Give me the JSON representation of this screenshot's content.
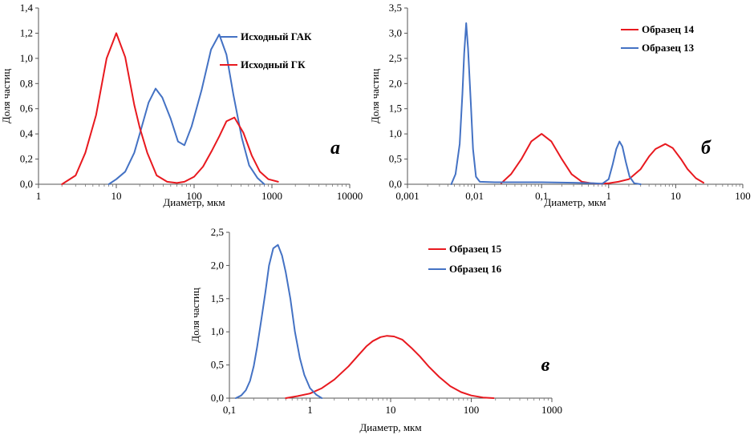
{
  "chart_data": [
    {
      "type": "line",
      "panel_label": "а",
      "xscale": "log",
      "xlim": [
        1,
        10000
      ],
      "ylim": [
        0,
        1.4
      ],
      "xticks": [
        "1",
        "10",
        "100",
        "1000",
        "10000"
      ],
      "yticks": [
        "0,0",
        "0,2",
        "0,4",
        "0,6",
        "0,8",
        "1,0",
        "1,2",
        "1,4"
      ],
      "xlabel": "Диаметр, мкм",
      "ylabel": "Доля частиц",
      "legend_position": "top-right",
      "series": [
        {
          "name": "Исходный ГАК",
          "color": "#4472C4",
          "points": [
            [
              8,
              0.0
            ],
            [
              10,
              0.04
            ],
            [
              13,
              0.1
            ],
            [
              17,
              0.25
            ],
            [
              20,
              0.4
            ],
            [
              26,
              0.65
            ],
            [
              32,
              0.76
            ],
            [
              39,
              0.69
            ],
            [
              50,
              0.52
            ],
            [
              62,
              0.34
            ],
            [
              75,
              0.31
            ],
            [
              93,
              0.46
            ],
            [
              125,
              0.75
            ],
            [
              165,
              1.07
            ],
            [
              210,
              1.19
            ],
            [
              260,
              1.03
            ],
            [
              320,
              0.71
            ],
            [
              410,
              0.37
            ],
            [
              510,
              0.15
            ],
            [
              650,
              0.05
            ],
            [
              800,
              0.0
            ]
          ]
        },
        {
          "name": "Исходный ГК",
          "color": "#E8191F",
          "points": [
            [
              2,
              0.0
            ],
            [
              3,
              0.07
            ],
            [
              4,
              0.25
            ],
            [
              5.5,
              0.55
            ],
            [
              7.5,
              1.0
            ],
            [
              10,
              1.2
            ],
            [
              13,
              1.01
            ],
            [
              17,
              0.63
            ],
            [
              20,
              0.45
            ],
            [
              25,
              0.25
            ],
            [
              33,
              0.07
            ],
            [
              45,
              0.02
            ],
            [
              60,
              0.01
            ],
            [
              75,
              0.02
            ],
            [
              100,
              0.06
            ],
            [
              130,
              0.14
            ],
            [
              170,
              0.27
            ],
            [
              210,
              0.38
            ],
            [
              260,
              0.5
            ],
            [
              330,
              0.53
            ],
            [
              430,
              0.41
            ],
            [
              550,
              0.23
            ],
            [
              700,
              0.1
            ],
            [
              900,
              0.04
            ],
            [
              1200,
              0.02
            ]
          ]
        }
      ]
    },
    {
      "type": "line",
      "panel_label": "б",
      "xscale": "log",
      "xlim": [
        0.001,
        100
      ],
      "ylim": [
        0,
        3.5
      ],
      "xticks": [
        "0,001",
        "0,01",
        "0,1",
        "1",
        "10",
        "100"
      ],
      "yticks": [
        "0,0",
        "0,5",
        "1,0",
        "1,5",
        "2,0",
        "2,5",
        "3,0",
        "3,5"
      ],
      "xlabel": "Диаметр, мкм",
      "ylabel": "Доля частиц",
      "legend_position": "top-right",
      "series": [
        {
          "name": "Образец 14",
          "color": "#E8191F",
          "points": [
            [
              0.025,
              0.02
            ],
            [
              0.035,
              0.2
            ],
            [
              0.05,
              0.5
            ],
            [
              0.07,
              0.85
            ],
            [
              0.1,
              1.0
            ],
            [
              0.14,
              0.85
            ],
            [
              0.2,
              0.5
            ],
            [
              0.28,
              0.2
            ],
            [
              0.4,
              0.05
            ],
            [
              0.55,
              0.02
            ],
            [
              0.75,
              0.01
            ],
            [
              1,
              0.02
            ],
            [
              1.4,
              0.05
            ],
            [
              2,
              0.1
            ],
            [
              3,
              0.3
            ],
            [
              4,
              0.55
            ],
            [
              5,
              0.7
            ],
            [
              7,
              0.8
            ],
            [
              9,
              0.72
            ],
            [
              12,
              0.5
            ],
            [
              15,
              0.3
            ],
            [
              20,
              0.12
            ],
            [
              26,
              0.03
            ]
          ]
        },
        {
          "name": "Образец 13",
          "color": "#4472C4",
          "points": [
            [
              0.0045,
              0.0
            ],
            [
              0.0052,
              0.2
            ],
            [
              0.006,
              0.8
            ],
            [
              0.0066,
              1.8
            ],
            [
              0.007,
              2.6
            ],
            [
              0.0075,
              3.2
            ],
            [
              0.008,
              2.7
            ],
            [
              0.0088,
              1.6
            ],
            [
              0.0095,
              0.7
            ],
            [
              0.0105,
              0.15
            ],
            [
              0.012,
              0.05
            ],
            [
              0.02,
              0.04
            ],
            [
              0.05,
              0.04
            ],
            [
              0.1,
              0.04
            ],
            [
              0.3,
              0.03
            ],
            [
              0.6,
              0.02
            ],
            [
              0.8,
              0.01
            ],
            [
              1,
              0.1
            ],
            [
              1.15,
              0.4
            ],
            [
              1.3,
              0.7
            ],
            [
              1.45,
              0.85
            ],
            [
              1.6,
              0.75
            ],
            [
              1.8,
              0.45
            ],
            [
              2.05,
              0.15
            ],
            [
              2.4,
              0.02
            ],
            [
              3,
              0.0
            ]
          ]
        }
      ]
    },
    {
      "type": "line",
      "panel_label": "в",
      "xscale": "log",
      "xlim": [
        0.1,
        1000
      ],
      "ylim": [
        0,
        2.5
      ],
      "xticks": [
        "0,1",
        "1",
        "10",
        "100",
        "1000"
      ],
      "yticks": [
        "0,0",
        "0,5",
        "1,0",
        "1,5",
        "2,0",
        "2,5"
      ],
      "xlabel": "Диаметр, мкм",
      "ylabel": "Доля частиц",
      "legend_position": "top-right",
      "series": [
        {
          "name": "Образец 15",
          "color": "#E8191F",
          "points": [
            [
              0.5,
              0.0
            ],
            [
              0.7,
              0.03
            ],
            [
              1,
              0.07
            ],
            [
              1.4,
              0.15
            ],
            [
              2,
              0.28
            ],
            [
              3,
              0.48
            ],
            [
              4,
              0.65
            ],
            [
              5,
              0.78
            ],
            [
              6,
              0.86
            ],
            [
              7.5,
              0.92
            ],
            [
              9,
              0.94
            ],
            [
              11,
              0.93
            ],
            [
              14,
              0.88
            ],
            [
              18,
              0.76
            ],
            [
              23,
              0.63
            ],
            [
              30,
              0.47
            ],
            [
              40,
              0.32
            ],
            [
              55,
              0.18
            ],
            [
              75,
              0.09
            ],
            [
              100,
              0.04
            ],
            [
              140,
              0.01
            ],
            [
              190,
              0.0
            ]
          ]
        },
        {
          "name": "Образец 16",
          "color": "#4472C4",
          "points": [
            [
              0.12,
              0.0
            ],
            [
              0.14,
              0.04
            ],
            [
              0.16,
              0.12
            ],
            [
              0.18,
              0.26
            ],
            [
              0.2,
              0.48
            ],
            [
              0.22,
              0.76
            ],
            [
              0.25,
              1.2
            ],
            [
              0.28,
              1.6
            ],
            [
              0.31,
              2.0
            ],
            [
              0.35,
              2.26
            ],
            [
              0.4,
              2.31
            ],
            [
              0.45,
              2.15
            ],
            [
              0.5,
              1.9
            ],
            [
              0.57,
              1.5
            ],
            [
              0.65,
              1.0
            ],
            [
              0.75,
              0.6
            ],
            [
              0.85,
              0.35
            ],
            [
              1,
              0.15
            ],
            [
              1.2,
              0.05
            ],
            [
              1.4,
              0.0
            ]
          ]
        }
      ]
    }
  ]
}
